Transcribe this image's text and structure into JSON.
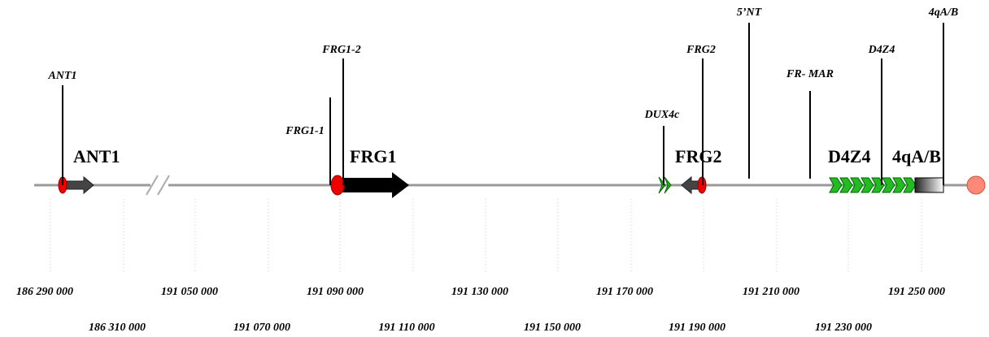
{
  "probes": [
    "ANT1",
    "FRG1-1",
    "FRG1-2",
    "DUX4c",
    "FRG2",
    "5’NT",
    "FR- MAR",
    "D4Z4",
    "4qA/B"
  ],
  "genes": [
    "ANT1",
    "FRG1",
    "FRG2",
    "D4Z4",
    "4qA/B"
  ],
  "scale_top": [
    "186 290 000",
    "191 050 000",
    "191 090 000",
    "191 130 000",
    "191 170 000",
    "191 210 000",
    "191 250 000"
  ],
  "scale_bottom": [
    "186 310 000",
    "191 070 000",
    "191 110 000",
    "191 150 000",
    "191 190 000",
    "191 230 000"
  ]
}
